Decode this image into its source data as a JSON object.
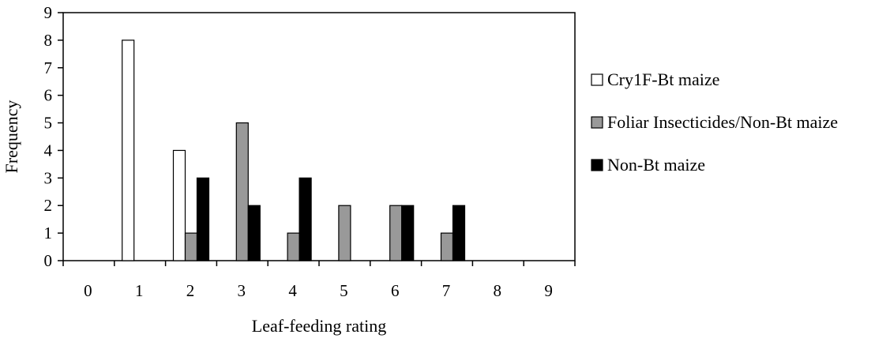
{
  "chart_data": {
    "type": "bar",
    "title": "",
    "xlabel": "Leaf-feeding rating",
    "ylabel": "Frequency",
    "categories": [
      "0",
      "1",
      "2",
      "3",
      "4",
      "5",
      "6",
      "7",
      "8",
      "9"
    ],
    "ylim": [
      0,
      9
    ],
    "yticks": [
      "0",
      "1",
      "2",
      "3",
      "4",
      "5",
      "6",
      "7",
      "8",
      "9"
    ],
    "grid": false,
    "legend_position": "right",
    "series": [
      {
        "name": "Cry1F-Bt maize",
        "color": "#ffffff",
        "values": [
          0,
          8,
          4,
          0,
          0,
          0,
          0,
          0,
          0,
          0
        ]
      },
      {
        "name": "Foliar Insecticides/Non-Bt maize",
        "color": "#999999",
        "values": [
          0,
          0,
          1,
          5,
          1,
          2,
          2,
          1,
          0,
          0
        ]
      },
      {
        "name": "Non-Bt maize",
        "color": "#000000",
        "values": [
          0,
          0,
          3,
          2,
          3,
          0,
          2,
          2,
          0,
          0
        ]
      }
    ]
  }
}
